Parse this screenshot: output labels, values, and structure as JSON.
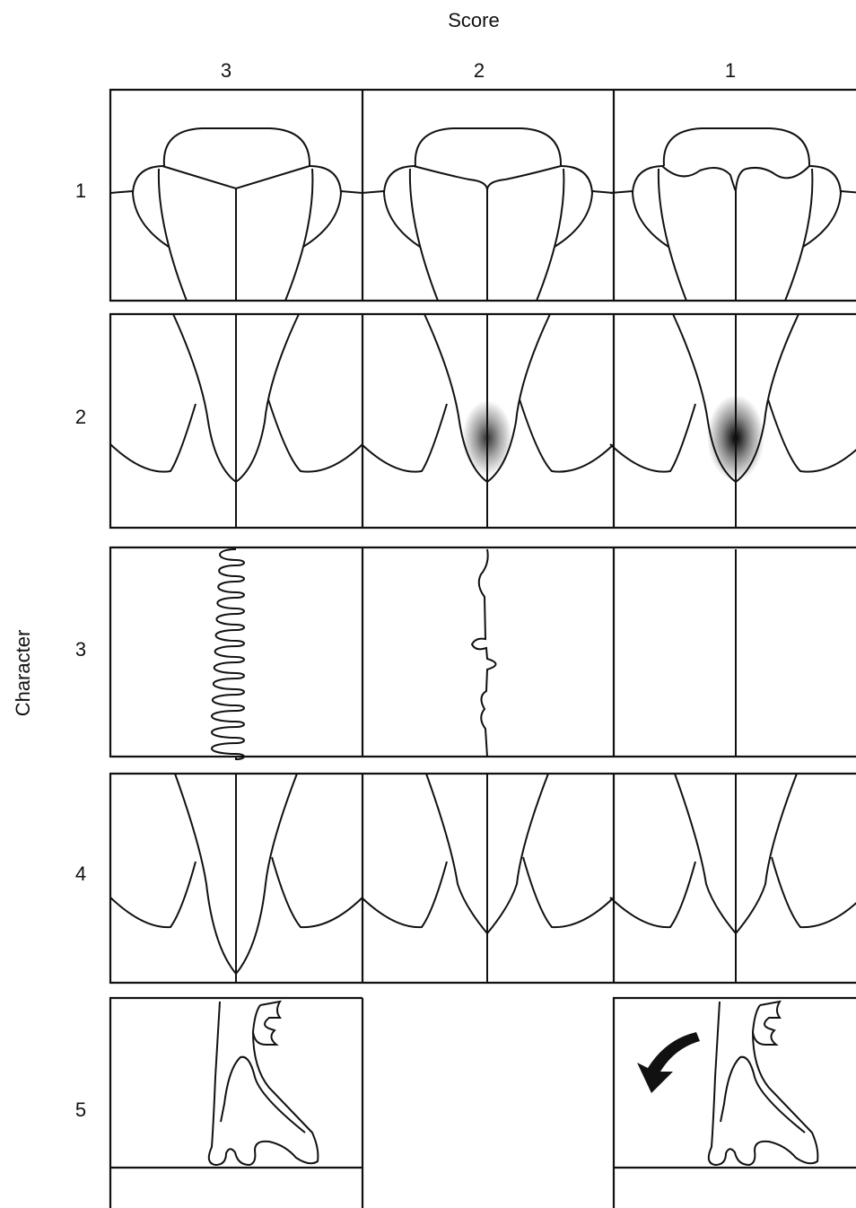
{
  "header": {
    "title": "Score",
    "columns": [
      "3",
      "2",
      "1"
    ]
  },
  "side": {
    "title": "Character",
    "rows": [
      "1",
      "2",
      "3",
      "4",
      "5"
    ]
  }
}
